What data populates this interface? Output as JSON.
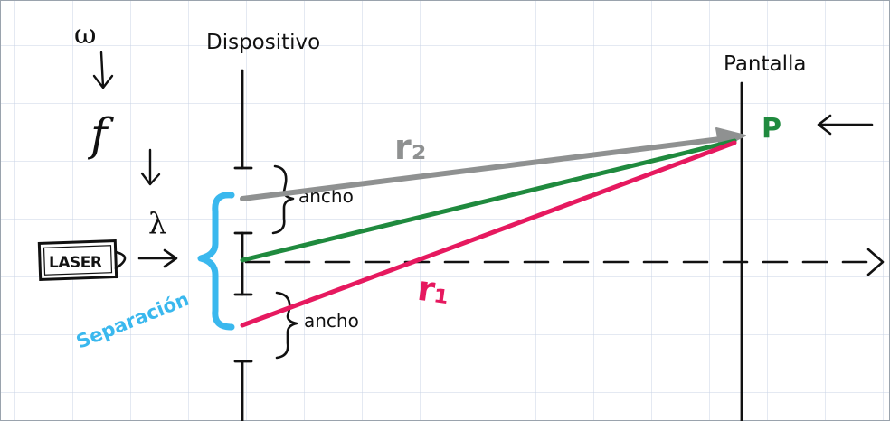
{
  "labels": {
    "omega": "ω",
    "frequency": "f",
    "wavelength": "λ",
    "device": "Dispositivo",
    "screen": "Pantalla",
    "laser": "LASER",
    "point": "P",
    "ray_top": "r₂",
    "ray_bottom": "r₁",
    "width_top": "ancho",
    "width_bottom": "ancho",
    "separation": "Separación"
  },
  "colors": {
    "grid": "#c9d3e6",
    "ink": "#111111",
    "ray_r2": "#8f9191",
    "ray_middle": "#1f8a3e",
    "ray_r1": "#e6195f",
    "point_p": "#1f8a3e",
    "separation": "#3ab8ee"
  }
}
